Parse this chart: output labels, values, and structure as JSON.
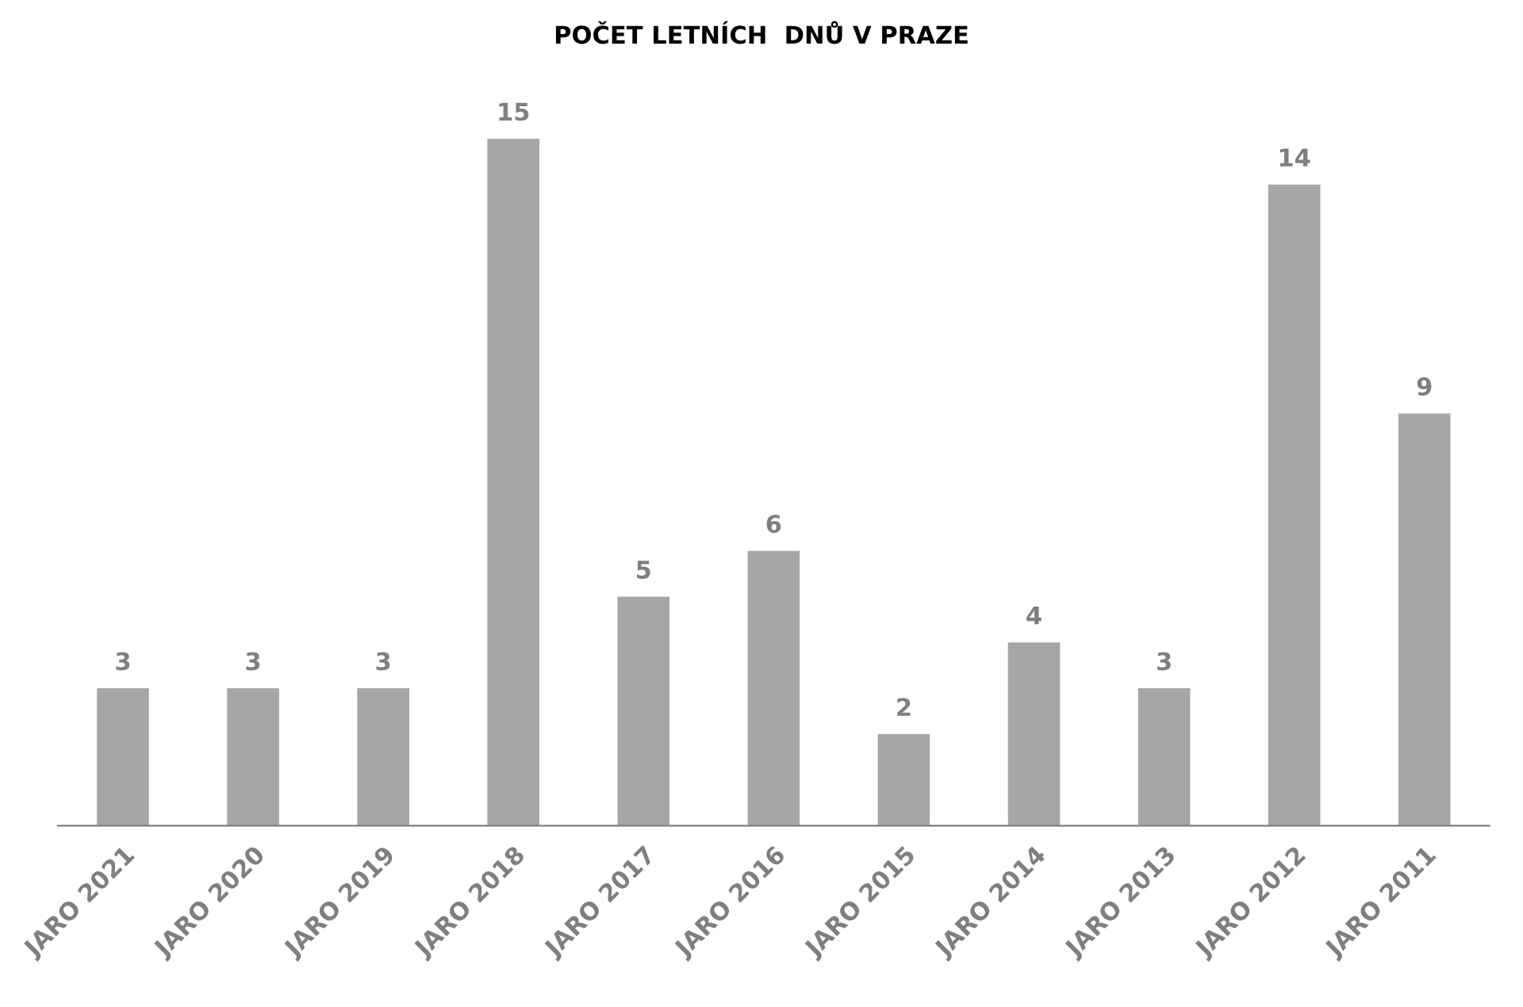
{
  "chart_data": {
    "type": "bar",
    "title": "POČET LETNÍCH  DNŮ V PRAZE",
    "categories": [
      "JARO 2021",
      "JARO 2020",
      "JARO 2019",
      "JARO 2018",
      "JARO 2017",
      "JARO 2016",
      "JARO 2015",
      "JARO 2014",
      "JARO 2013",
      "JARO 2012",
      "JARO 2011"
    ],
    "values": [
      3,
      3,
      3,
      15,
      5,
      6,
      2,
      4,
      3,
      14,
      9
    ],
    "color": "#a6a6a6",
    "data_labels": true,
    "grid": false,
    "legend": false
  }
}
